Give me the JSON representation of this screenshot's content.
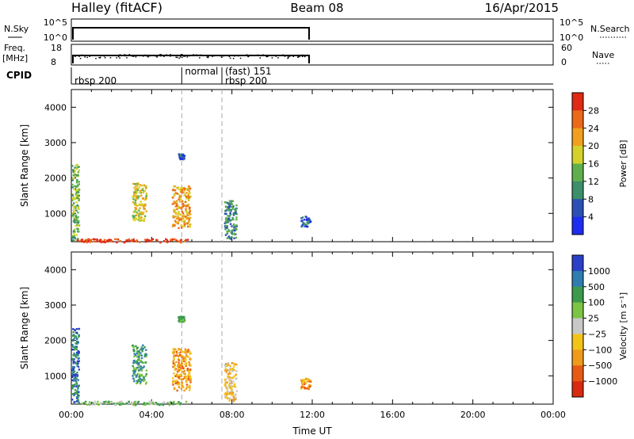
{
  "header": {
    "station": "Halley (fitACF)",
    "beam": "Beam 08",
    "date": "16/Apr/2015"
  },
  "strips": {
    "nsky_label": "N.Sky",
    "nsky_ticks": [
      "10^5",
      "10^0"
    ],
    "nsearch_label": "N.Search",
    "nsearch_ticks": [
      "10^5",
      "10^0"
    ],
    "freq_label": "Freq.",
    "freq_unit": "[MHz]",
    "freq_ticks": [
      "18",
      "8"
    ],
    "nave_label": "Nave",
    "nave_ticks": [
      "60",
      "0"
    ],
    "cpid_label": "CPID",
    "cpid_segments": [
      {
        "label": "rbsp 200",
        "start_h": 0.0
      },
      {
        "label": "normal",
        "start_h": 5.5
      },
      {
        "label": "(fast) 151",
        "start_h": 7.5
      },
      {
        "label": "rbsp 200",
        "start_h": 7.5
      }
    ]
  },
  "chart_data": [
    {
      "type": "heatmap",
      "name": "power",
      "ylabel": "Slant Range [km]",
      "yticks": [
        "1000",
        "2000",
        "3000",
        "4000"
      ],
      "ylim": [
        200,
        4500
      ],
      "xlim": [
        0,
        24
      ],
      "colorbar_label": "Power [dB]",
      "colorbar_ticks": [
        "4",
        "8",
        "12",
        "16",
        "20",
        "24",
        "28"
      ],
      "colorbar_colors": [
        "#1d2cf0",
        "#2a4fb5",
        "#3b8f6a",
        "#5fb04c",
        "#d4d22a",
        "#f0a01e",
        "#ea6a1a",
        "#e02a14"
      ],
      "clusters": [
        {
          "t0": 0.0,
          "t1": 0.35,
          "r0": 250,
          "r1": 2400,
          "level": 3
        },
        {
          "t0": 0.25,
          "t1": 5.8,
          "r0": 200,
          "r1": 300,
          "level": 7
        },
        {
          "t0": 3.0,
          "t1": 3.7,
          "r0": 800,
          "r1": 1900,
          "level": 4
        },
        {
          "t0": 5.0,
          "t1": 5.9,
          "r0": 600,
          "r1": 1800,
          "level": 5
        },
        {
          "t0": 5.3,
          "t1": 5.6,
          "r0": 2550,
          "r1": 2700,
          "level": 1
        },
        {
          "t0": 7.6,
          "t1": 8.2,
          "r0": 300,
          "r1": 1400,
          "level": 2
        },
        {
          "t0": 11.4,
          "t1": 11.9,
          "r0": 650,
          "r1": 950,
          "level": 1
        }
      ]
    },
    {
      "type": "heatmap",
      "name": "velocity",
      "ylabel": "Slant Range [km]",
      "yticks": [
        "1000",
        "2000",
        "3000",
        "4000"
      ],
      "ylim": [
        200,
        4500
      ],
      "xlim": [
        0,
        24
      ],
      "xlabel": "Time UT",
      "xticks": [
        "00:00",
        "04:00",
        "08:00",
        "12:00",
        "16:00",
        "20:00",
        "00:00"
      ],
      "colorbar_label": "Velocity [m s⁻¹]",
      "colorbar_ticks": [
        "1000",
        "500",
        "100",
        "25",
        "−25",
        "−100",
        "−500",
        "−1000"
      ],
      "colorbar_colors": [
        "#2a40c8",
        "#2d7db0",
        "#3b9a4c",
        "#7cc444",
        "#c8c8c8",
        "#f2c418",
        "#f09a1a",
        "#e85a14",
        "#d82a10"
      ],
      "clusters": [
        {
          "t0": 0.0,
          "t1": 0.35,
          "r0": 250,
          "r1": 2400,
          "level": 1
        },
        {
          "t0": 0.25,
          "t1": 5.8,
          "r0": 200,
          "r1": 300,
          "level": 3
        },
        {
          "t0": 3.0,
          "t1": 3.7,
          "r0": 800,
          "r1": 1900,
          "level": 2
        },
        {
          "t0": 5.0,
          "t1": 5.9,
          "r0": 600,
          "r1": 1800,
          "level": 6
        },
        {
          "t0": 5.3,
          "t1": 5.6,
          "r0": 2550,
          "r1": 2700,
          "level": 2
        },
        {
          "t0": 7.6,
          "t1": 8.2,
          "r0": 300,
          "r1": 1400,
          "level": 5
        },
        {
          "t0": 11.4,
          "t1": 11.9,
          "r0": 650,
          "r1": 950,
          "level": 6
        }
      ]
    }
  ]
}
